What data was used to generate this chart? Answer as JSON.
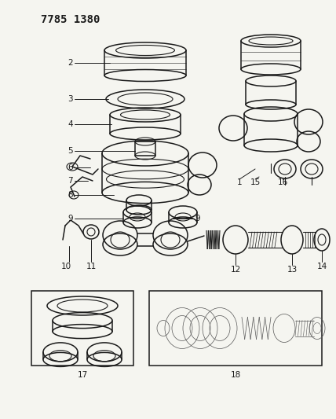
{
  "title": "7785 1380",
  "bg_color": "#f5f5f0",
  "line_color": "#1a1a1a",
  "title_fontsize": 10,
  "label_fontsize": 7.5,
  "fig_width": 4.28,
  "fig_height": 5.33,
  "dpi": 100
}
